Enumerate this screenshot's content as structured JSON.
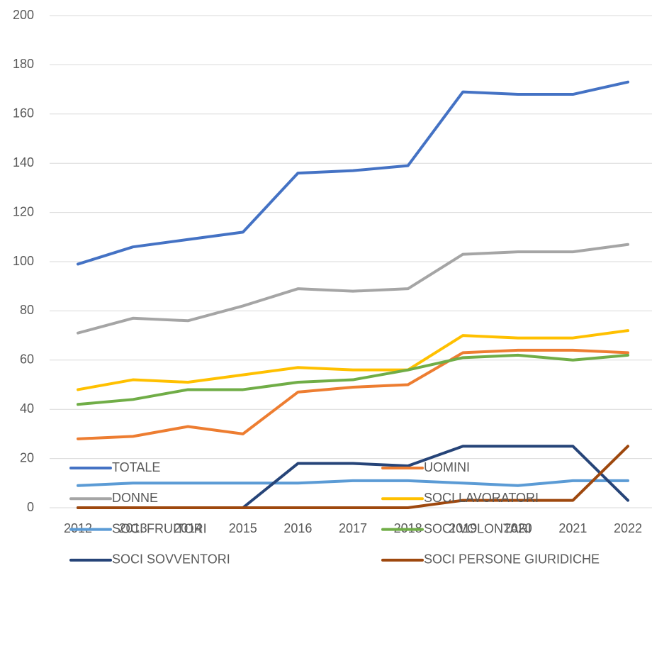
{
  "chart_data": {
    "type": "line",
    "categories": [
      "2012",
      "2013",
      "2014",
      "2015",
      "2016",
      "2017",
      "2018",
      "2019",
      "2020",
      "2021",
      "2022"
    ],
    "series": [
      {
        "name": "TOTALE",
        "color": "#4472c4",
        "values": [
          99,
          106,
          109,
          112,
          136,
          137,
          139,
          169,
          168,
          168,
          173
        ]
      },
      {
        "name": "UOMINI",
        "color": "#ed7d31",
        "values": [
          28,
          29,
          33,
          30,
          47,
          49,
          50,
          63,
          64,
          64,
          63
        ]
      },
      {
        "name": "DONNE",
        "color": "#a5a5a5",
        "values": [
          71,
          77,
          76,
          82,
          89,
          88,
          89,
          103,
          104,
          104,
          107
        ]
      },
      {
        "name": "SOCI LAVORATORI",
        "color": "#ffc000",
        "values": [
          48,
          52,
          51,
          54,
          57,
          56,
          56,
          70,
          69,
          69,
          72
        ]
      },
      {
        "name": "SOCI FRUITORI",
        "color": "#5b9bd5",
        "values": [
          9,
          10,
          10,
          10,
          10,
          11,
          11,
          10,
          9,
          11,
          11
        ]
      },
      {
        "name": "SOCI VOLONTARI",
        "color": "#70ad47",
        "values": [
          42,
          44,
          48,
          48,
          51,
          52,
          56,
          61,
          62,
          60,
          62
        ]
      },
      {
        "name": "SOCI SOVVENTORI",
        "color": "#264478",
        "values": [
          0,
          0,
          0,
          0,
          18,
          18,
          17,
          25,
          25,
          25,
          3
        ]
      },
      {
        "name": "SOCI PERSONE GIURIDICHE",
        "color": "#9e480e",
        "values": [
          0,
          0,
          0,
          0,
          0,
          0,
          0,
          3,
          3,
          3,
          25
        ]
      }
    ],
    "ylim": [
      0,
      200
    ],
    "yticks": [
      0,
      20,
      40,
      60,
      80,
      100,
      120,
      140,
      160,
      180,
      200
    ],
    "grid": true,
    "legend": "bottom"
  }
}
